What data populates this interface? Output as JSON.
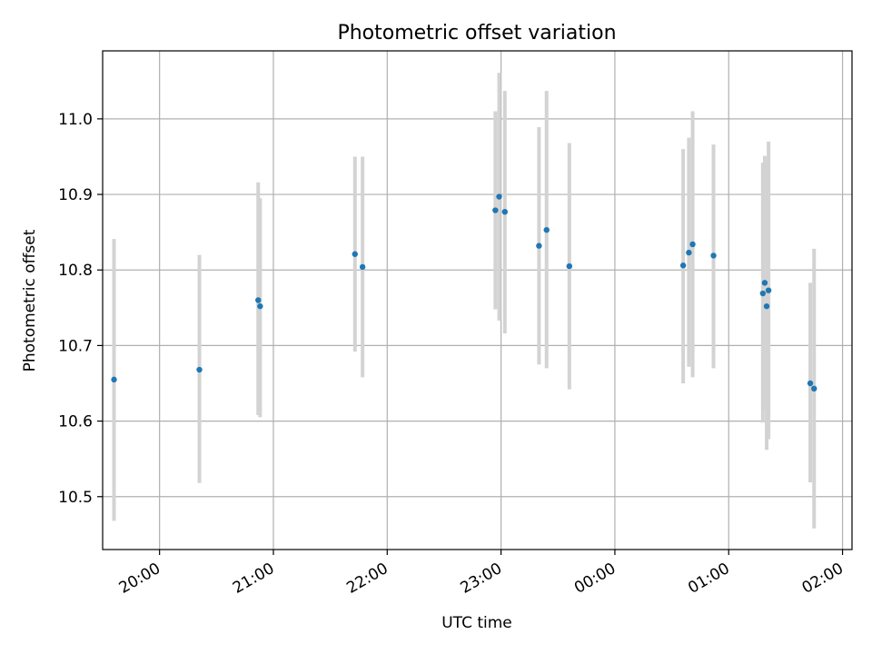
{
  "chart_data": {
    "type": "scatter",
    "title": "Photometric offset variation",
    "xlabel": "UTC time",
    "ylabel": "Photometric offset",
    "x_axis": "time",
    "xlim": [
      "19:30",
      "02:05"
    ],
    "ylim": [
      10.43,
      11.09
    ],
    "xticks": [
      "20:00",
      "21:00",
      "22:00",
      "23:00",
      "00:00",
      "01:00",
      "02:00"
    ],
    "yticks": [
      "10.5",
      "10.6",
      "10.7",
      "10.8",
      "10.9",
      "11.0"
    ],
    "grid": true,
    "point_color": "#1f77b4",
    "errorbar_color": "#d3d3d3",
    "points": [
      {
        "time": "19:36",
        "value": 10.655,
        "err_low": 10.468,
        "err_high": 10.841
      },
      {
        "time": "20:21",
        "value": 10.668,
        "err_low": 10.518,
        "err_high": 10.82
      },
      {
        "time": "20:52",
        "value": 10.76,
        "err_low": 10.608,
        "err_high": 10.916
      },
      {
        "time": "20:53",
        "value": 10.752,
        "err_low": 10.605,
        "err_high": 10.895
      },
      {
        "time": "21:43",
        "value": 10.821,
        "err_low": 10.692,
        "err_high": 10.95
      },
      {
        "time": "21:47",
        "value": 10.804,
        "err_low": 10.658,
        "err_high": 10.95
      },
      {
        "time": "22:57",
        "value": 10.879,
        "err_low": 10.748,
        "err_high": 11.01
      },
      {
        "time": "22:59",
        "value": 10.897,
        "err_low": 10.733,
        "err_high": 11.061
      },
      {
        "time": "23:02",
        "value": 10.877,
        "err_low": 10.716,
        "err_high": 11.037
      },
      {
        "time": "23:20",
        "value": 10.832,
        "err_low": 10.675,
        "err_high": 10.989
      },
      {
        "time": "23:24",
        "value": 10.853,
        "err_low": 10.67,
        "err_high": 11.037
      },
      {
        "time": "23:36",
        "value": 10.805,
        "err_low": 10.642,
        "err_high": 10.968
      },
      {
        "time": "00:36",
        "value": 10.806,
        "err_low": 10.65,
        "err_high": 10.96
      },
      {
        "time": "00:39",
        "value": 10.823,
        "err_low": 10.672,
        "err_high": 10.975
      },
      {
        "time": "00:41",
        "value": 10.834,
        "err_low": 10.658,
        "err_high": 11.01
      },
      {
        "time": "00:52",
        "value": 10.819,
        "err_low": 10.67,
        "err_high": 10.966
      },
      {
        "time": "01:18",
        "value": 10.769,
        "err_low": 10.598,
        "err_high": 10.942
      },
      {
        "time": "01:19",
        "value": 10.783,
        "err_low": 10.615,
        "err_high": 10.951
      },
      {
        "time": "01:20",
        "value": 10.752,
        "err_low": 10.562,
        "err_high": 10.945
      },
      {
        "time": "01:21",
        "value": 10.773,
        "err_low": 10.576,
        "err_high": 10.97
      },
      {
        "time": "01:43",
        "value": 10.65,
        "err_low": 10.519,
        "err_high": 10.783
      },
      {
        "time": "01:45",
        "value": 10.643,
        "err_low": 10.458,
        "err_high": 10.828
      }
    ]
  }
}
